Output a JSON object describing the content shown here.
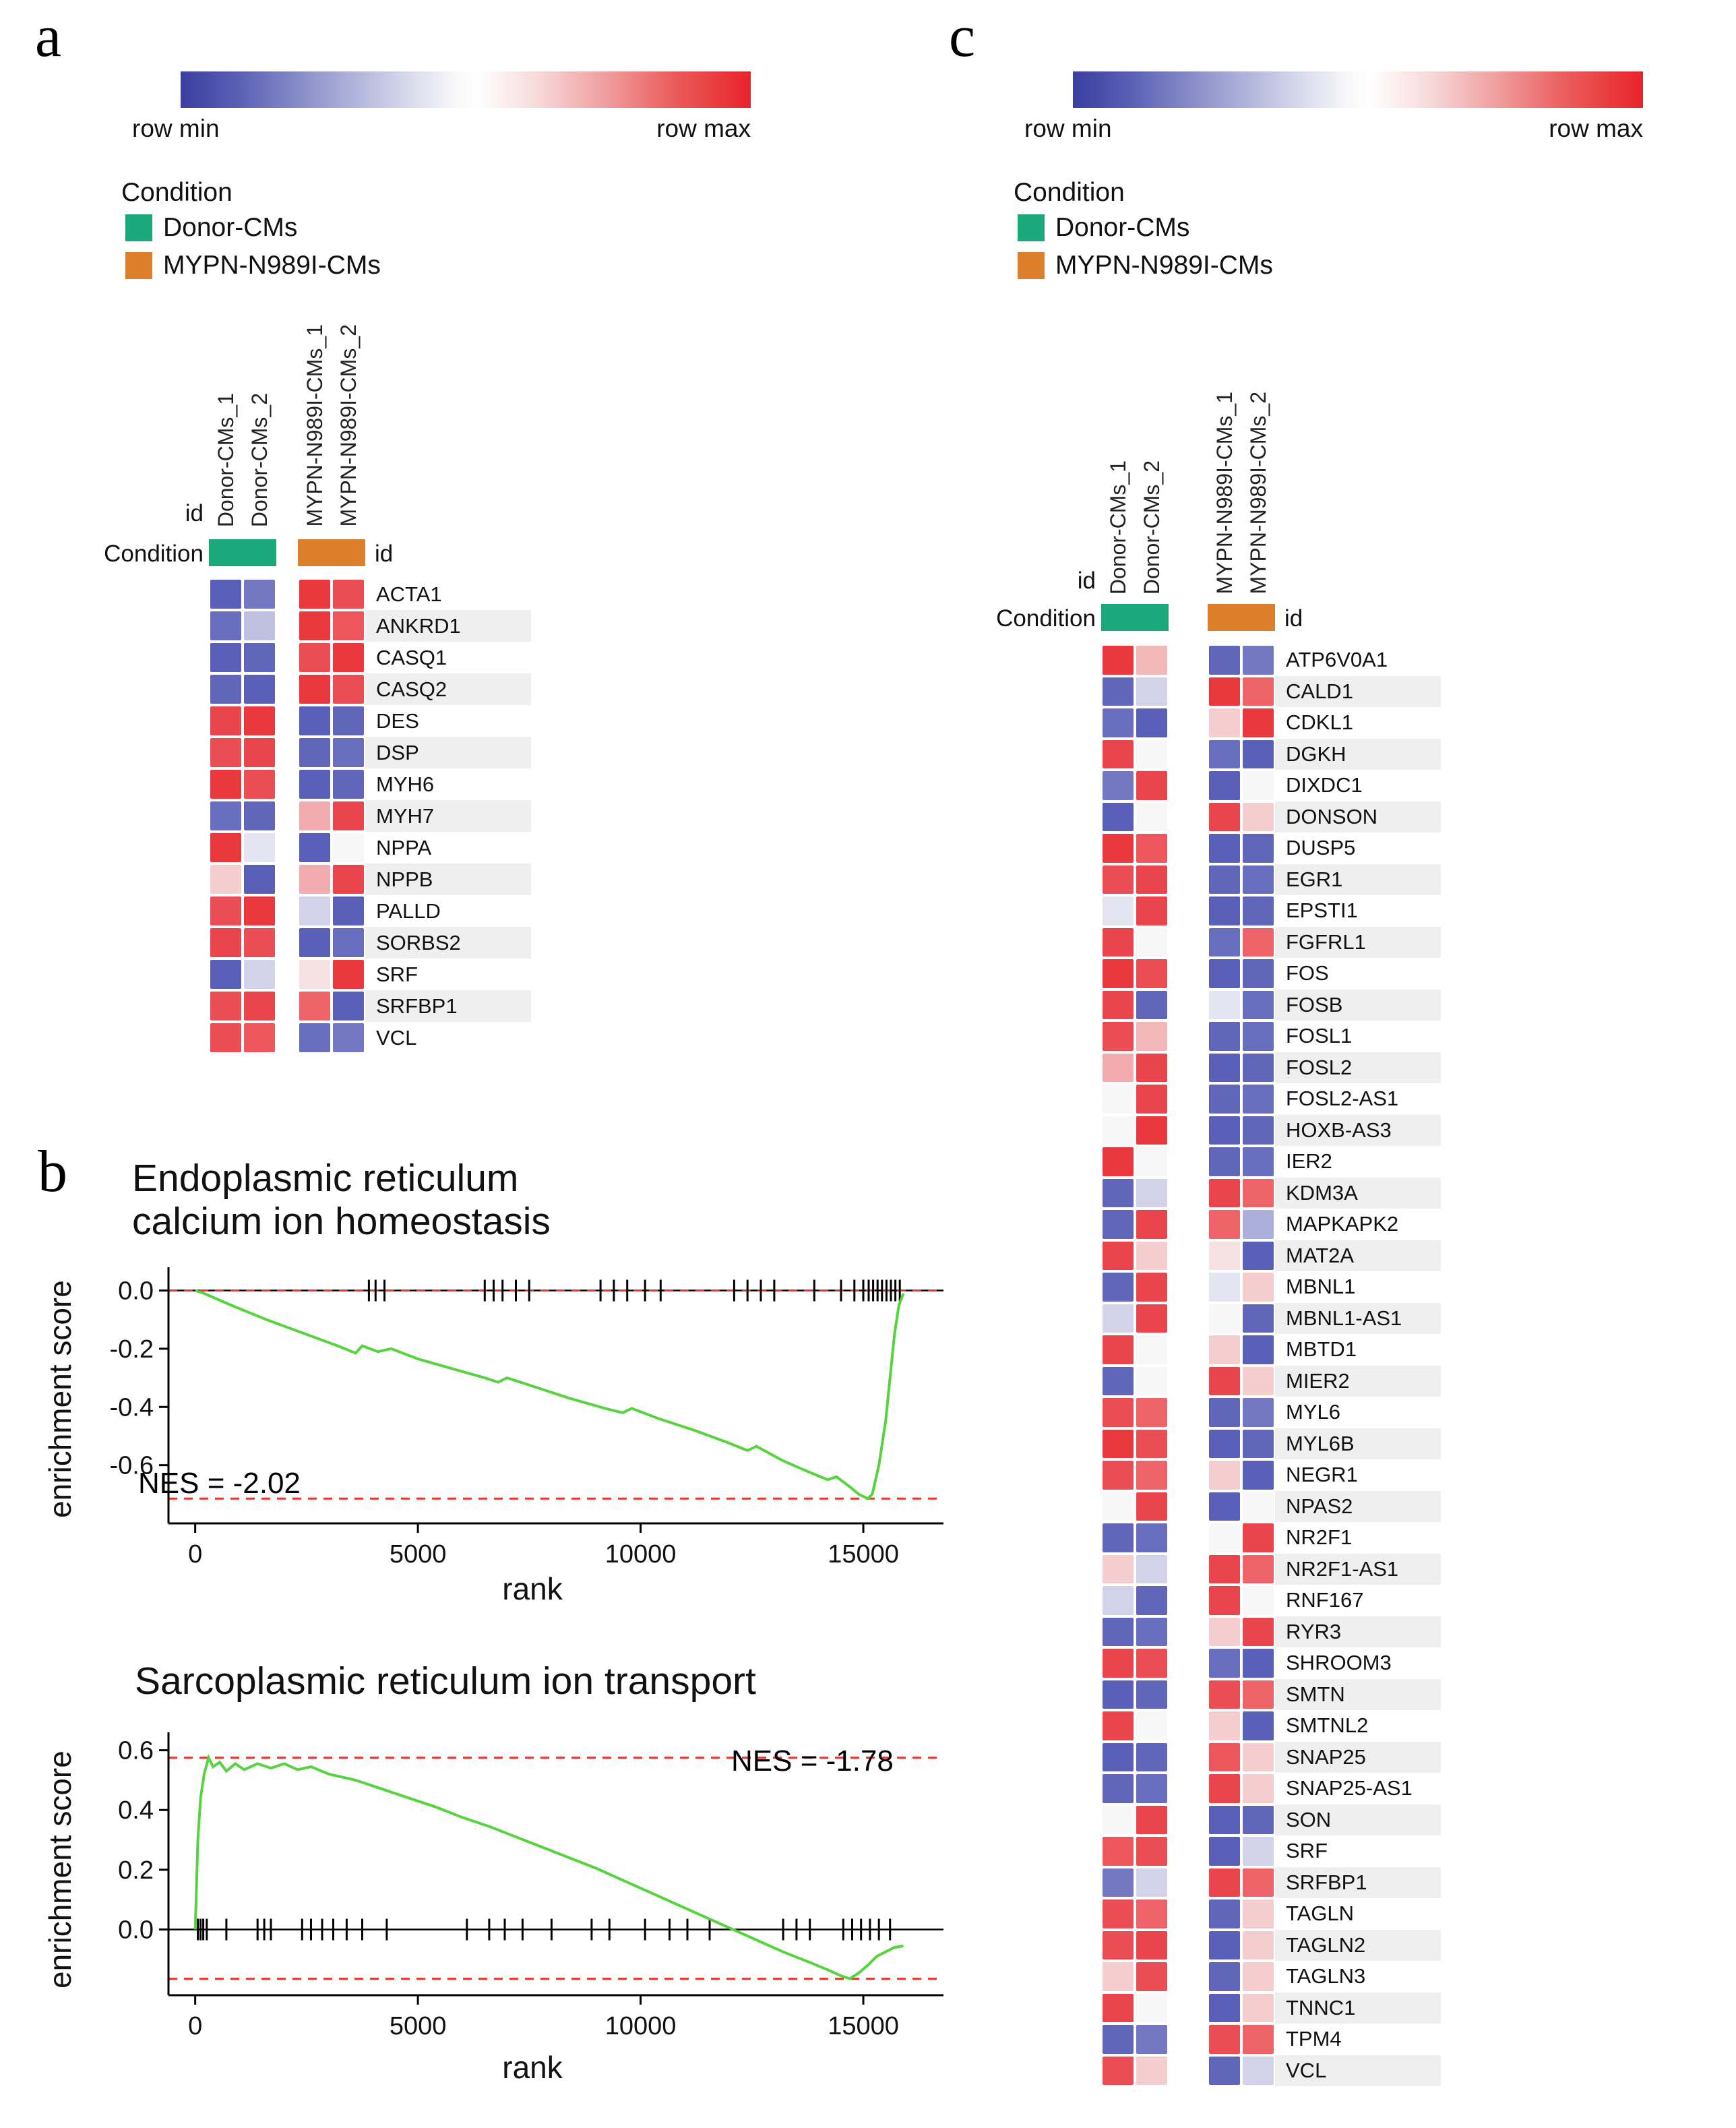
{
  "panels": {
    "a": "a",
    "b": "b",
    "c": "c"
  },
  "gradient_legend": {
    "row_min": "row min",
    "row_max": "row max"
  },
  "condition_legend": {
    "title": "Condition",
    "items": [
      {
        "label": "Donor-CMs",
        "color": "#1ba97b"
      },
      {
        "label": "MYPN-N989I-CMs",
        "color": "#dc7f2a"
      }
    ]
  },
  "heatmap_labels": {
    "id": "id",
    "condition": "Condition"
  },
  "colors": {
    "heat_min": "#3c42ac",
    "heat_mid": "#f7f7f7",
    "heat_max": "#e8232b",
    "curve_green": "#56d33f",
    "dashed_red": "#e8352b",
    "hit_black": "#000000"
  },
  "chart_data": [
    {
      "type": "heatmap",
      "panel": "a",
      "columns": [
        "Donor-CMs_1",
        "Donor-CMs_2",
        "MYPN-N989I-CMs_1",
        "MYPN-N989I-CMs_2"
      ],
      "column_conditions": [
        "Donor-CMs",
        "Donor-CMs",
        "MYPN-N989I-CMs",
        "MYPN-N989I-CMs"
      ],
      "scale_note": "row-normalized: 0 = row min (blue), 1 = row max (red)",
      "rows": [
        "ACTA1",
        "ANKRD1",
        "CASQ1",
        "CASQ2",
        "DES",
        "DSP",
        "MYH6",
        "MYH7",
        "NPPA",
        "NPPB",
        "PALLD",
        "SORBS2",
        "SRF",
        "SRFBP1",
        "VCL"
      ],
      "values": [
        [
          0.08,
          0.15,
          0.95,
          0.9
        ],
        [
          0.12,
          0.35,
          0.95,
          0.88
        ],
        [
          0.08,
          0.1,
          0.9,
          0.95
        ],
        [
          0.1,
          0.08,
          0.95,
          0.9
        ],
        [
          0.92,
          0.95,
          0.08,
          0.1
        ],
        [
          0.9,
          0.92,
          0.1,
          0.12
        ],
        [
          0.95,
          0.9,
          0.08,
          0.1
        ],
        [
          0.12,
          0.1,
          0.68,
          0.92
        ],
        [
          0.95,
          0.45,
          0.08,
          0.5
        ],
        [
          0.6,
          0.08,
          0.68,
          0.92
        ],
        [
          0.9,
          0.95,
          0.4,
          0.08
        ],
        [
          0.92,
          0.9,
          0.08,
          0.12
        ],
        [
          0.08,
          0.4,
          0.55,
          0.95
        ],
        [
          0.9,
          0.92,
          0.85,
          0.08
        ],
        [
          0.9,
          0.88,
          0.12,
          0.15
        ]
      ]
    },
    {
      "type": "line",
      "panel": "b",
      "title": "Endoplasmic reticulum calcium ion homeostasis",
      "nes_label": "NES = -2.02",
      "xlabel": "rank",
      "ylabel": "enrichment score",
      "xlim": [
        -600,
        16800
      ],
      "ylim": [
        -0.8,
        0.08
      ],
      "xticks": [
        0,
        5000,
        10000,
        15000
      ],
      "yticks": [
        0,
        -0.2,
        -0.4,
        -0.6
      ],
      "dashed_lines": [
        0,
        -0.715
      ],
      "hits": [
        3900,
        4050,
        4250,
        6500,
        6700,
        6900,
        7200,
        7500,
        9100,
        9400,
        9700,
        10100,
        10450,
        12100,
        12400,
        12700,
        13000,
        13900,
        14500,
        14800,
        15000,
        15120,
        15220,
        15320,
        15420,
        15520,
        15620,
        15720,
        15820
      ],
      "curve": [
        [
          0,
          0
        ],
        [
          200,
          -0.01
        ],
        [
          800,
          -0.05
        ],
        [
          1600,
          -0.1
        ],
        [
          2400,
          -0.145
        ],
        [
          3200,
          -0.19
        ],
        [
          3600,
          -0.215
        ],
        [
          3750,
          -0.19
        ],
        [
          4100,
          -0.21
        ],
        [
          4400,
          -0.2
        ],
        [
          5000,
          -0.235
        ],
        [
          5800,
          -0.27
        ],
        [
          6500,
          -0.3
        ],
        [
          6800,
          -0.315
        ],
        [
          7000,
          -0.3
        ],
        [
          7600,
          -0.33
        ],
        [
          8400,
          -0.37
        ],
        [
          9200,
          -0.405
        ],
        [
          9600,
          -0.42
        ],
        [
          9800,
          -0.405
        ],
        [
          10400,
          -0.44
        ],
        [
          11200,
          -0.48
        ],
        [
          12000,
          -0.525
        ],
        [
          12400,
          -0.55
        ],
        [
          12600,
          -0.535
        ],
        [
          13200,
          -0.585
        ],
        [
          13800,
          -0.625
        ],
        [
          14200,
          -0.65
        ],
        [
          14400,
          -0.64
        ],
        [
          14700,
          -0.675
        ],
        [
          14900,
          -0.7
        ],
        [
          15100,
          -0.715
        ],
        [
          15200,
          -0.7
        ],
        [
          15350,
          -0.6
        ],
        [
          15500,
          -0.45
        ],
        [
          15600,
          -0.3
        ],
        [
          15700,
          -0.15
        ],
        [
          15800,
          -0.05
        ],
        [
          15900,
          -0.01
        ]
      ]
    },
    {
      "type": "line",
      "panel": "b",
      "title": "Sarcoplasmic reticulum ion transport",
      "nes_label": "NES = -1.78",
      "xlabel": "rank",
      "ylabel": "enrichment score",
      "xlim": [
        -600,
        16800
      ],
      "ylim": [
        -0.22,
        0.66
      ],
      "xticks": [
        0,
        5000,
        10000,
        15000
      ],
      "yticks": [
        0,
        0.2,
        0.4,
        0.6
      ],
      "dashed_lines": [
        0.575,
        -0.165
      ],
      "hits": [
        60,
        120,
        180,
        260,
        700,
        1400,
        1550,
        1700,
        2400,
        2600,
        2850,
        3100,
        3400,
        3750,
        4300,
        6100,
        6600,
        6950,
        7350,
        8000,
        8900,
        9300,
        10100,
        10650,
        11050,
        11550,
        13200,
        13500,
        13800,
        14550,
        14750,
        14950,
        15150,
        15350,
        15600
      ],
      "curve": [
        [
          0,
          0
        ],
        [
          60,
          0.3
        ],
        [
          120,
          0.44
        ],
        [
          200,
          0.52
        ],
        [
          300,
          0.575
        ],
        [
          400,
          0.545
        ],
        [
          550,
          0.56
        ],
        [
          700,
          0.53
        ],
        [
          900,
          0.555
        ],
        [
          1100,
          0.535
        ],
        [
          1400,
          0.555
        ],
        [
          1700,
          0.54
        ],
        [
          2000,
          0.555
        ],
        [
          2300,
          0.535
        ],
        [
          2600,
          0.545
        ],
        [
          3000,
          0.52
        ],
        [
          3600,
          0.5
        ],
        [
          4200,
          0.47
        ],
        [
          4800,
          0.44
        ],
        [
          5400,
          0.41
        ],
        [
          6000,
          0.375
        ],
        [
          6600,
          0.345
        ],
        [
          7200,
          0.31
        ],
        [
          7800,
          0.275
        ],
        [
          8400,
          0.24
        ],
        [
          9000,
          0.205
        ],
        [
          9600,
          0.165
        ],
        [
          10200,
          0.125
        ],
        [
          10800,
          0.085
        ],
        [
          11400,
          0.045
        ],
        [
          12000,
          0.005
        ],
        [
          12600,
          -0.035
        ],
        [
          13200,
          -0.075
        ],
        [
          13800,
          -0.11
        ],
        [
          14200,
          -0.135
        ],
        [
          14500,
          -0.155
        ],
        [
          14700,
          -0.165
        ],
        [
          14900,
          -0.145
        ],
        [
          15100,
          -0.12
        ],
        [
          15300,
          -0.09
        ],
        [
          15500,
          -0.075
        ],
        [
          15700,
          -0.06
        ],
        [
          15900,
          -0.055
        ]
      ]
    },
    {
      "type": "heatmap",
      "panel": "c",
      "columns": [
        "Donor-CMs_1",
        "Donor-CMs_2",
        "MYPN-N989I-CMs_1",
        "MYPN-N989I-CMs_2"
      ],
      "column_conditions": [
        "Donor-CMs",
        "Donor-CMs",
        "MYPN-N989I-CMs",
        "MYPN-N989I-CMs"
      ],
      "scale_note": "row-normalized: 0 = row min (blue), 1 = row max (red)",
      "rows": [
        "ATP6V0A1",
        "CALD1",
        "CDKL1",
        "DGKH",
        "DIXDC1",
        "DONSON",
        "DUSP5",
        "EGR1",
        "EPSTI1",
        "FGFRL1",
        "FOS",
        "FOSB",
        "FOSL1",
        "FOSL2",
        "FOSL2-AS1",
        "HOXB-AS3",
        "IER2",
        "KDM3A",
        "MAPKAPK2",
        "MAT2A",
        "MBNL1",
        "MBNL1-AS1",
        "MBTD1",
        "MIER2",
        "MYL6",
        "MYL6B",
        "NEGR1",
        "NPAS2",
        "NR2F1",
        "NR2F1-AS1",
        "RNF167",
        "RYR3",
        "SHROOM3",
        "SMTN",
        "SMTNL2",
        "SNAP25",
        "SNAP25-AS1",
        "SON",
        "SRF",
        "SRFBP1",
        "TAGLN",
        "TAGLN2",
        "TAGLN3",
        "TNNC1",
        "TPM4",
        "VCL"
      ],
      "values": [
        [
          0.95,
          0.65,
          0.1,
          0.15
        ],
        [
          0.1,
          0.4,
          0.95,
          0.85
        ],
        [
          0.12,
          0.08,
          0.6,
          0.95
        ],
        [
          0.92,
          0.5,
          0.12,
          0.08
        ],
        [
          0.15,
          0.92,
          0.08,
          0.5
        ],
        [
          0.08,
          0.5,
          0.92,
          0.6
        ],
        [
          0.95,
          0.88,
          0.08,
          0.1
        ],
        [
          0.9,
          0.92,
          0.1,
          0.12
        ],
        [
          0.45,
          0.92,
          0.08,
          0.1
        ],
        [
          0.92,
          0.5,
          0.12,
          0.85
        ],
        [
          0.95,
          0.9,
          0.08,
          0.1
        ],
        [
          0.92,
          0.1,
          0.45,
          0.12
        ],
        [
          0.9,
          0.65,
          0.1,
          0.12
        ],
        [
          0.68,
          0.92,
          0.08,
          0.1
        ],
        [
          0.5,
          0.92,
          0.1,
          0.12
        ],
        [
          0.5,
          0.95,
          0.08,
          0.1
        ],
        [
          0.95,
          0.5,
          0.1,
          0.12
        ],
        [
          0.1,
          0.4,
          0.92,
          0.85
        ],
        [
          0.1,
          0.92,
          0.85,
          0.3
        ],
        [
          0.92,
          0.6,
          0.55,
          0.08
        ],
        [
          0.1,
          0.92,
          0.45,
          0.6
        ],
        [
          0.4,
          0.92,
          0.5,
          0.1
        ],
        [
          0.92,
          0.5,
          0.6,
          0.08
        ],
        [
          0.1,
          0.5,
          0.92,
          0.6
        ],
        [
          0.9,
          0.85,
          0.1,
          0.15
        ],
        [
          0.95,
          0.9,
          0.08,
          0.1
        ],
        [
          0.9,
          0.85,
          0.6,
          0.08
        ],
        [
          0.5,
          0.92,
          0.08,
          0.5
        ],
        [
          0.1,
          0.12,
          0.5,
          0.92
        ],
        [
          0.6,
          0.4,
          0.92,
          0.85
        ],
        [
          0.4,
          0.1,
          0.92,
          0.5
        ],
        [
          0.1,
          0.12,
          0.6,
          0.92
        ],
        [
          0.92,
          0.9,
          0.12,
          0.08
        ],
        [
          0.08,
          0.1,
          0.9,
          0.85
        ],
        [
          0.92,
          0.5,
          0.6,
          0.08
        ],
        [
          0.08,
          0.1,
          0.88,
          0.6
        ],
        [
          0.1,
          0.12,
          0.92,
          0.6
        ],
        [
          0.5,
          0.92,
          0.08,
          0.1
        ],
        [
          0.88,
          0.9,
          0.08,
          0.4
        ],
        [
          0.15,
          0.4,
          0.92,
          0.85
        ],
        [
          0.9,
          0.85,
          0.1,
          0.6
        ],
        [
          0.9,
          0.92,
          0.08,
          0.6
        ],
        [
          0.6,
          0.9,
          0.1,
          0.6
        ],
        [
          0.92,
          0.5,
          0.08,
          0.6
        ],
        [
          0.1,
          0.15,
          0.9,
          0.85
        ],
        [
          0.9,
          0.6,
          0.1,
          0.4
        ]
      ]
    }
  ]
}
